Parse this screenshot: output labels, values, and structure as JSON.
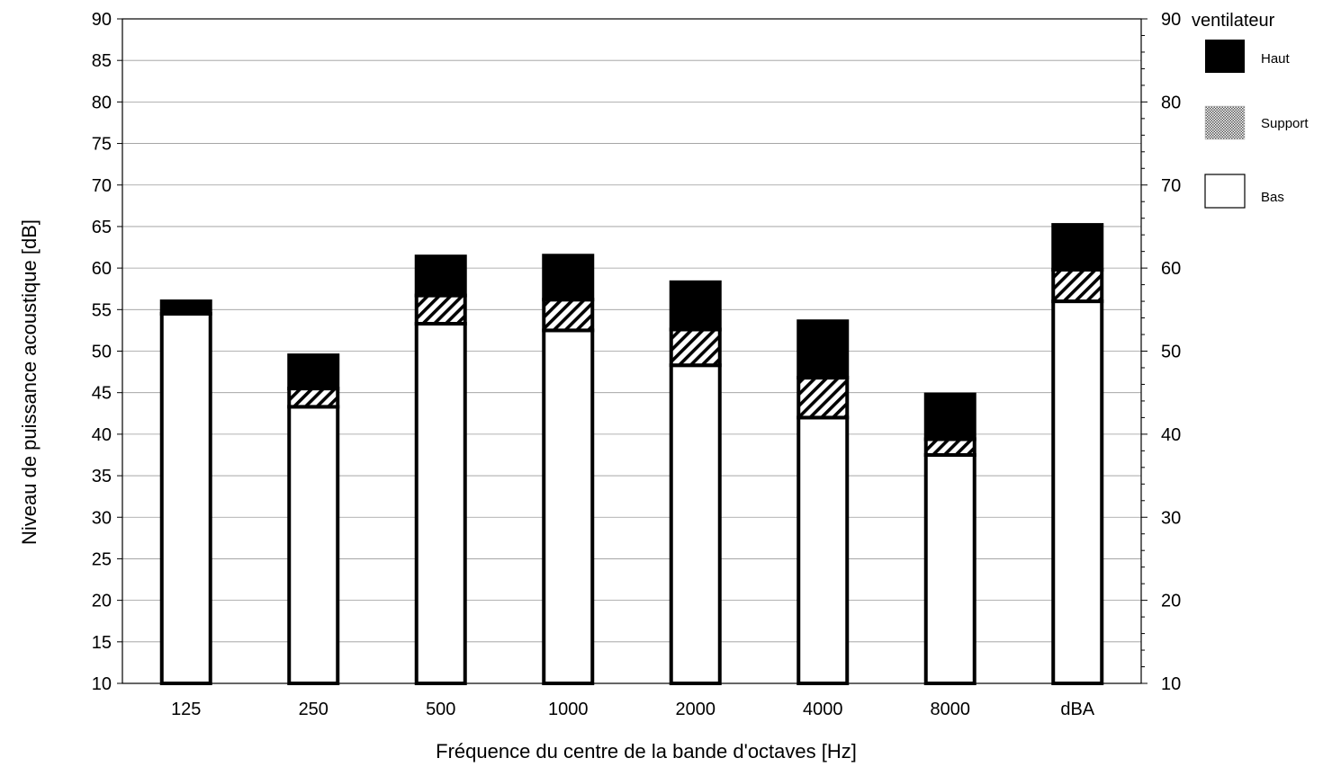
{
  "chart_data": {
    "type": "bar",
    "stacked": true,
    "categories": [
      "125",
      "250",
      "500",
      "1000",
      "2000",
      "4000",
      "8000",
      "dBA"
    ],
    "series": [
      {
        "name": "Bas",
        "values": [
          44.5,
          33.3,
          43.3,
          42.5,
          38.3,
          32.0,
          27.5,
          46.0
        ],
        "color": "#ffffff"
      },
      {
        "name": "Support",
        "values": [
          0,
          2.2,
          3.4,
          3.7,
          4.3,
          4.8,
          1.9,
          3.8
        ],
        "color": "hatched"
      },
      {
        "name": "Haut",
        "values": [
          1.5,
          4.0,
          4.7,
          5.3,
          5.7,
          6.8,
          5.4,
          5.4
        ],
        "color": "#000000"
      }
    ],
    "totals": [
      46.0,
      39.5,
      51.4,
      51.5,
      48.3,
      43.6,
      34.8,
      55.2
    ],
    "ylim": [
      10,
      90
    ],
    "left_ticks": [
      "10",
      "15",
      "20",
      "25",
      "30",
      "35",
      "40",
      "45",
      "50",
      "55",
      "60",
      "65",
      "70",
      "75",
      "80",
      "85",
      "90"
    ],
    "right_ticks": [
      "10",
      "20",
      "30",
      "40",
      "50",
      "60",
      "70",
      "80",
      "90"
    ],
    "ylabel": "Niveau de puissance acoustique [dB]",
    "xlabel": "Fréquence du centre de la bande d'octaves [Hz]",
    "legend": {
      "title": "ventilateur",
      "placement": "right",
      "entries": [
        "Haut",
        "Support",
        "Bas"
      ]
    },
    "grid": true
  }
}
